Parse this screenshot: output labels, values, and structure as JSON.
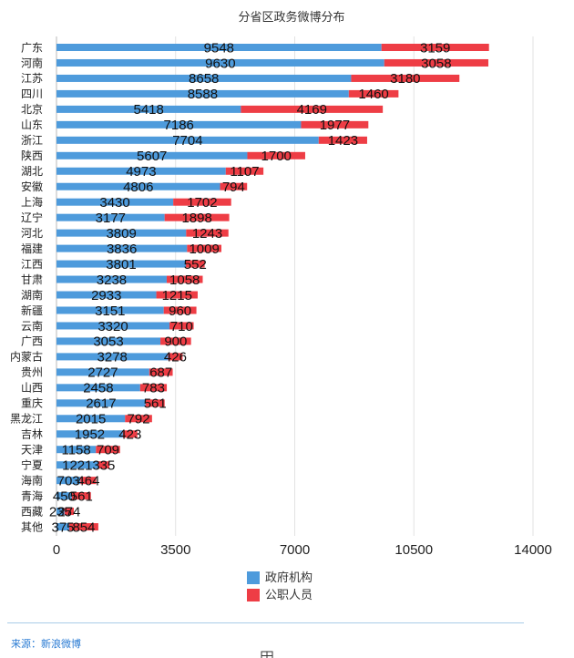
{
  "chart_data": {
    "type": "bar",
    "orientation": "horizontal",
    "stacked": true,
    "title": "分省区政务微博分布",
    "categories": [
      "广东",
      "河南",
      "江苏",
      "四川",
      "北京",
      "山东",
      "浙江",
      "陕西",
      "湖北",
      "安徽",
      "上海",
      "辽宁",
      "河北",
      "福建",
      "江西",
      "甘肃",
      "湖南",
      "新疆",
      "云南",
      "广西",
      "内蒙古",
      "贵州",
      "山西",
      "重庆",
      "黑龙江",
      "吉林",
      "天津",
      "宁夏",
      "海南",
      "青海",
      "西藏",
      "其他"
    ],
    "series": [
      {
        "name": "政府机构",
        "color": "#4e9bdc",
        "values": [
          9548,
          9630,
          8658,
          8588,
          5418,
          7186,
          7704,
          5607,
          4973,
          4806,
          3430,
          3177,
          3809,
          3836,
          3801,
          3238,
          2933,
          3151,
          3320,
          3053,
          3278,
          2727,
          2458,
          2617,
          2015,
          1952,
          1158,
          1221,
          703,
          450,
          235,
          375
        ]
      },
      {
        "name": "公职人员",
        "color": "#ee3d45",
        "values": [
          3159,
          3058,
          3180,
          1460,
          4169,
          1977,
          1423,
          1700,
          1107,
          794,
          1702,
          1898,
          1243,
          1009,
          552,
          1058,
          1215,
          960,
          710,
          900,
          426,
          687,
          783,
          561,
          792,
          423,
          709,
          335,
          464,
          561,
          274,
          854
        ]
      }
    ],
    "xlim": [
      0,
      14000
    ],
    "xticks": [
      0,
      3500,
      7000,
      10500,
      14000
    ],
    "grid": true,
    "legend": "bottom-center"
  },
  "footer": {
    "source": "来源：新浪微博",
    "icon": "grid-icon"
  }
}
